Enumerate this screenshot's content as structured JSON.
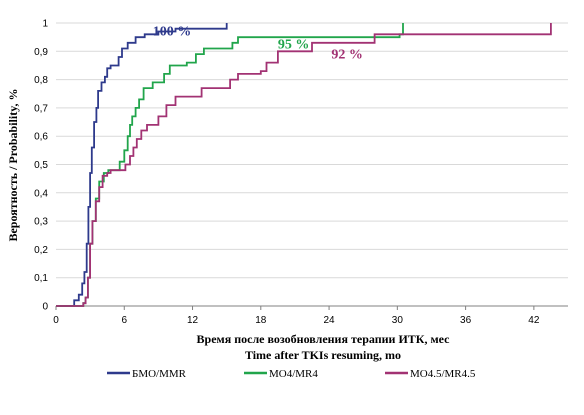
{
  "chart_data": {
    "type": "line",
    "step": true,
    "xlabel": "Время после возобновления терапии ИТК, мес",
    "xlabel_en": "Time after TKIs resuming, mo",
    "ylabel": "Вероятность / Probability, %",
    "xlim": [
      0,
      45
    ],
    "ylim": [
      0,
      1
    ],
    "x_ticks": [
      0,
      6,
      12,
      18,
      24,
      30,
      36,
      42
    ],
    "y_ticks": [
      0,
      0.1,
      0.2,
      0.3,
      0.4,
      0.5,
      0.6,
      0.7,
      0.8,
      0.9,
      1
    ],
    "y_tick_labels": [
      "0",
      "0,1",
      "0,2",
      "0,3",
      "0,4",
      "0,5",
      "0,6",
      "0,7",
      "0,8",
      "0,9",
      "1"
    ],
    "grid": "horizontal",
    "legend_position": "bottom",
    "series": [
      {
        "name": "БМО/MMR",
        "color": "#2e3a8c",
        "annotation": "100 %",
        "annotation_at": [
          8.5,
          0.955
        ],
        "points": [
          [
            0,
            0
          ],
          [
            1.3,
            0
          ],
          [
            1.6,
            0.02
          ],
          [
            2,
            0.04
          ],
          [
            2.3,
            0.08
          ],
          [
            2.5,
            0.12
          ],
          [
            2.7,
            0.22
          ],
          [
            2.85,
            0.35
          ],
          [
            3,
            0.47
          ],
          [
            3.15,
            0.56
          ],
          [
            3.35,
            0.65
          ],
          [
            3.55,
            0.7
          ],
          [
            3.7,
            0.76
          ],
          [
            4,
            0.79
          ],
          [
            4.3,
            0.81
          ],
          [
            4.5,
            0.84
          ],
          [
            4.8,
            0.85
          ],
          [
            5.5,
            0.88
          ],
          [
            5.8,
            0.91
          ],
          [
            6.3,
            0.93
          ],
          [
            7,
            0.95
          ],
          [
            7.8,
            0.96
          ],
          [
            9,
            0.97
          ],
          [
            10.5,
            0.98
          ],
          [
            15,
            1
          ]
        ]
      },
      {
        "name": "МО4/MR4",
        "color": "#21a54b",
        "annotation": "95 %",
        "annotation_at": [
          19.5,
          0.91
        ],
        "points": [
          [
            0,
            0
          ],
          [
            1.6,
            0
          ],
          [
            2.4,
            0.01
          ],
          [
            2.6,
            0.03
          ],
          [
            2.8,
            0.1
          ],
          [
            3,
            0.22
          ],
          [
            3.2,
            0.3
          ],
          [
            3.5,
            0.38
          ],
          [
            3.8,
            0.44
          ],
          [
            4.2,
            0.47
          ],
          [
            4.6,
            0.48
          ],
          [
            5.4,
            0.48
          ],
          [
            5.6,
            0.51
          ],
          [
            6,
            0.55
          ],
          [
            6.3,
            0.6
          ],
          [
            6.5,
            0.64
          ],
          [
            6.7,
            0.67
          ],
          [
            7,
            0.7
          ],
          [
            7.3,
            0.73
          ],
          [
            7.7,
            0.77
          ],
          [
            8.5,
            0.79
          ],
          [
            9.5,
            0.82
          ],
          [
            10,
            0.85
          ],
          [
            11.5,
            0.86
          ],
          [
            12.3,
            0.89
          ],
          [
            13,
            0.91
          ],
          [
            15.5,
            0.93
          ],
          [
            16,
            0.95
          ],
          [
            30.2,
            0.96
          ],
          [
            30.5,
            1
          ]
        ]
      },
      {
        "name": "МО4.5/MR4.5",
        "color": "#a23273",
        "annotation": "92 %",
        "annotation_at": [
          24.2,
          0.875
        ],
        "points": [
          [
            0,
            0
          ],
          [
            1.6,
            0
          ],
          [
            2.4,
            0.01
          ],
          [
            2.6,
            0.03
          ],
          [
            2.8,
            0.1
          ],
          [
            3,
            0.22
          ],
          [
            3.2,
            0.3
          ],
          [
            3.5,
            0.37
          ],
          [
            3.8,
            0.42
          ],
          [
            4.1,
            0.46
          ],
          [
            4.5,
            0.47
          ],
          [
            4.8,
            0.48
          ],
          [
            5.8,
            0.48
          ],
          [
            6.1,
            0.5
          ],
          [
            6.5,
            0.53
          ],
          [
            6.8,
            0.56
          ],
          [
            7.1,
            0.59
          ],
          [
            7.5,
            0.62
          ],
          [
            8,
            0.64
          ],
          [
            9,
            0.67
          ],
          [
            9.7,
            0.71
          ],
          [
            10.5,
            0.74
          ],
          [
            12.3,
            0.74
          ],
          [
            12.8,
            0.77
          ],
          [
            15.3,
            0.8
          ],
          [
            16,
            0.82
          ],
          [
            18,
            0.83
          ],
          [
            18.5,
            0.86
          ],
          [
            19.5,
            0.9
          ],
          [
            22.5,
            0.93
          ],
          [
            28,
            0.96
          ],
          [
            43.5,
            1
          ]
        ]
      }
    ]
  }
}
